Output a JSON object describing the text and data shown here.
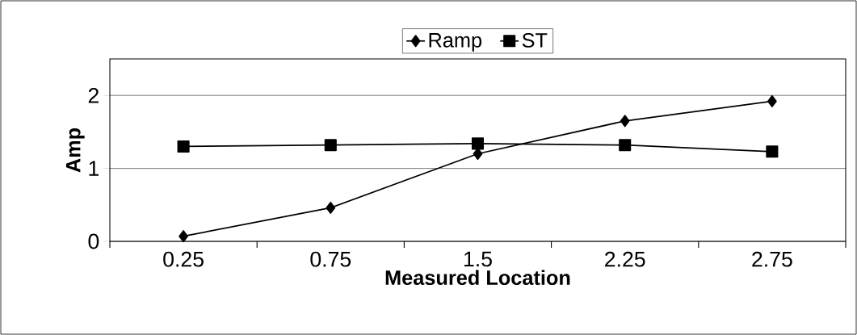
{
  "chart_data": {
    "type": "line",
    "xlabel": "Measured Location",
    "ylabel": "Amp",
    "categories": [
      "0.25",
      "0.75",
      "1.5",
      "2.25",
      "2.75"
    ],
    "series": [
      {
        "name": "Ramp",
        "color": "#000000",
        "marker": "diamond",
        "values": [
          0.07,
          0.46,
          1.2,
          1.65,
          1.92
        ]
      },
      {
        "name": "ST",
        "color": "#000000",
        "marker": "square",
        "values": [
          1.3,
          1.32,
          1.34,
          1.32,
          1.23
        ]
      }
    ],
    "ylim": [
      0,
      2.5
    ],
    "yticks": [
      0,
      1,
      2
    ],
    "grid": "y",
    "legend": "top",
    "line_style": "solid"
  }
}
